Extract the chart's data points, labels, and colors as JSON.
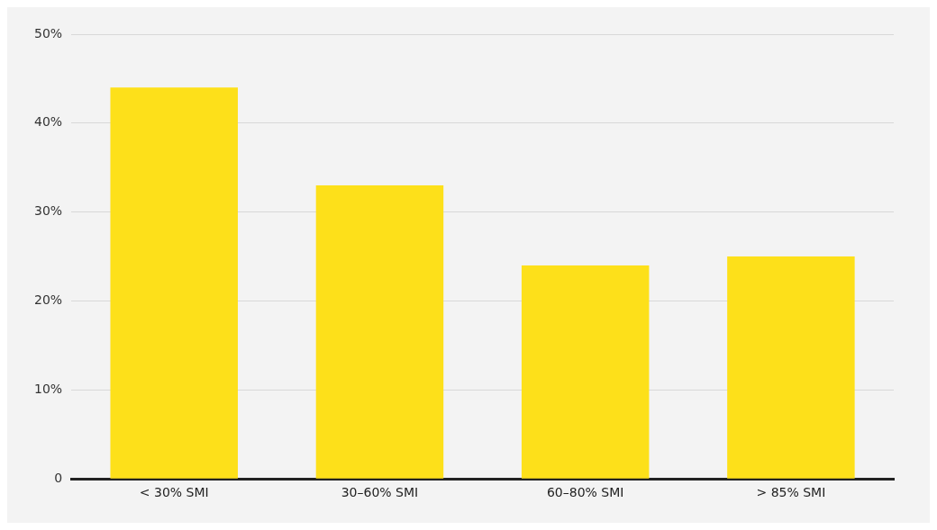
{
  "chart_data": {
    "type": "bar",
    "categories": [
      "< 30% SMI",
      "30–60% SMI",
      "60–80% SMI",
      "> 85% SMI"
    ],
    "values": [
      44,
      33,
      24,
      25
    ],
    "color": "#fde01a",
    "ylim": [
      0,
      50
    ],
    "yticks": [
      0,
      {
        "value": 10,
        "label": "10%"
      },
      {
        "value": 20,
        "label": "20%"
      },
      {
        "value": 30,
        "label": "30%"
      },
      {
        "value": 40,
        "label": "40%"
      },
      {
        "value": 50,
        "label": "50%"
      }
    ],
    "grid": "y",
    "legend": false
  }
}
